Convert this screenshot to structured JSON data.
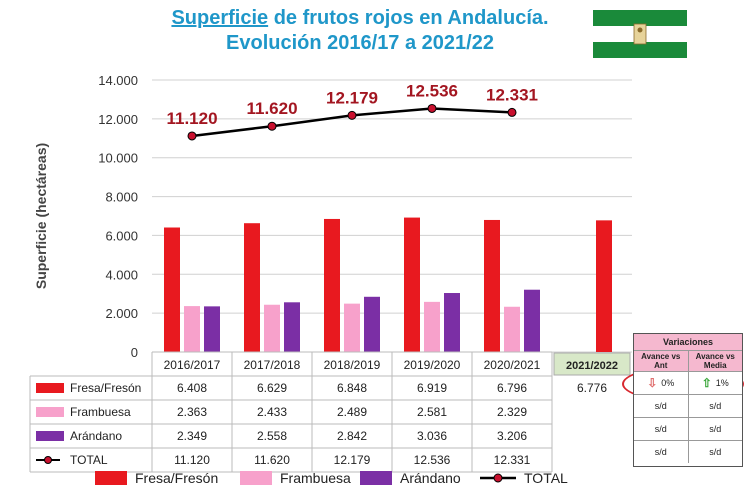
{
  "title_part1": "Superficie",
  "title_part2": " de frutos rojos en Andalucía.",
  "title_line2": "Evolución 2016/17 a 2021/22",
  "chart_data": {
    "type": "bar",
    "ylabel": "Superficie (hectáreas)",
    "ylim": [
      0,
      14000
    ],
    "yticks": [
      "0",
      "2.000",
      "4.000",
      "6.000",
      "8.000",
      "10.000",
      "12.000",
      "14.000"
    ],
    "categories": [
      "2016/2017",
      "2017/2018",
      "2018/2019",
      "2019/2020",
      "2020/2021",
      "2021/2022"
    ],
    "series": [
      {
        "name": "Fresa/Fresón",
        "color": "#e8191f",
        "values": [
          6408,
          6629,
          6848,
          6919,
          6796,
          6776
        ],
        "labels": [
          "6.408",
          "6.629",
          "6.848",
          "6.919",
          "6.796",
          "6.776"
        ]
      },
      {
        "name": "Frambuesa",
        "color": "#f7a1cb",
        "values": [
          2363,
          2433,
          2489,
          2581,
          2329,
          null
        ],
        "labels": [
          "2.363",
          "2.433",
          "2.489",
          "2.581",
          "2.329",
          ""
        ]
      },
      {
        "name": "Arándano",
        "color": "#7b2fa5",
        "values": [
          2349,
          2558,
          2842,
          3036,
          3206,
          null
        ],
        "labels": [
          "2.349",
          "2.558",
          "2.842",
          "3.036",
          "3.206",
          ""
        ]
      },
      {
        "name": "TOTAL",
        "type": "line",
        "color": "#000000",
        "marker_color": "#c8102e",
        "values": [
          11120,
          11620,
          12179,
          12536,
          12331,
          null
        ],
        "labels": [
          "11.120",
          "11.620",
          "12.179",
          "12.536",
          "12.331",
          ""
        ]
      }
    ],
    "legend_position": "bottom",
    "grid": true
  },
  "variaciones": {
    "title": "Variaciones",
    "col1": "Avance vs Ant",
    "col2": "Avance vs Media",
    "rows": [
      [
        "0%",
        "1%"
      ],
      [
        "s/d",
        "s/d"
      ],
      [
        "s/d",
        "s/d"
      ],
      [
        "s/d",
        "s/d"
      ]
    ]
  },
  "colors": {
    "title": "#1f97c9",
    "total_label": "#a31621",
    "flag_green": "#1a8a3a",
    "highlight_cell": "#d8e8c8"
  }
}
